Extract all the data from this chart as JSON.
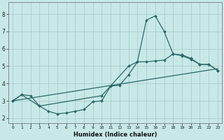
{
  "xlabel": "Humidex (Indice chaleur)",
  "background_color": "#c8e8e8",
  "grid_color": "#aacccc",
  "line_color": "#2a6868",
  "xlim": [
    -0.5,
    23.5
  ],
  "ylim": [
    1.7,
    8.7
  ],
  "xticks": [
    0,
    1,
    2,
    3,
    4,
    5,
    6,
    7,
    8,
    9,
    10,
    11,
    12,
    13,
    14,
    15,
    16,
    17,
    18,
    19,
    20,
    21,
    22,
    23
  ],
  "yticks": [
    2,
    3,
    4,
    5,
    6,
    7,
    8
  ],
  "line1_x": [
    0,
    1,
    2,
    3,
    4,
    5,
    6,
    7,
    8,
    9,
    10,
    11,
    12,
    13,
    14,
    15,
    16,
    17,
    18,
    19,
    20,
    21,
    22,
    23
  ],
  "line1_y": [
    3.0,
    3.35,
    3.3,
    2.7,
    2.4,
    2.25,
    2.3,
    2.4,
    2.5,
    2.95,
    3.0,
    3.85,
    3.9,
    4.5,
    5.25,
    7.65,
    7.9,
    7.0,
    5.7,
    5.6,
    5.4,
    5.1,
    5.1,
    4.75
  ],
  "line2_x": [
    0,
    1,
    3,
    10,
    13,
    14,
    15,
    16,
    17,
    18,
    19,
    20,
    21,
    22,
    23
  ],
  "line2_y": [
    3.0,
    3.35,
    2.7,
    3.3,
    5.0,
    5.25,
    5.25,
    5.3,
    5.35,
    5.7,
    5.65,
    5.45,
    5.1,
    5.1,
    4.75
  ],
  "line3_x": [
    0,
    23
  ],
  "line3_y": [
    3.0,
    4.85
  ]
}
